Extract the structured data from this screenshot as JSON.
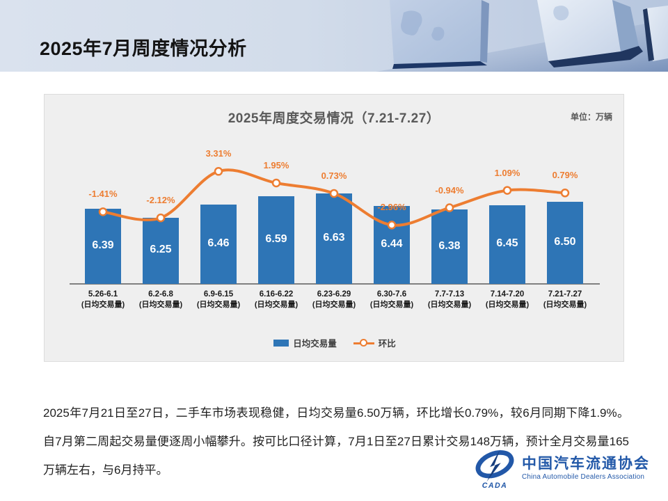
{
  "slide": {
    "title": "2025年7月周度情况分析"
  },
  "chart": {
    "title": "2025年周度交易情况（7.21-7.27）",
    "unit_label": "单位：万辆",
    "legend": {
      "bars": "日均交易量",
      "line": "环比"
    }
  },
  "chart_data": {
    "type": "bar",
    "title": "2025年周度交易情况（7.21-7.27）",
    "unit": "万辆",
    "categories": [
      "5.26-6.1",
      "6.2-6.8",
      "6.9-6.15",
      "6.16-6.22",
      "6.23-6.29",
      "6.30-7.6",
      "7.7-7.13",
      "7.14-7.20",
      "7.21-7.27"
    ],
    "category_sub_label": "(日均交易量)",
    "series": [
      {
        "name": "日均交易量",
        "type": "bar",
        "color": "#2E75B6",
        "values": [
          6.39,
          6.25,
          6.46,
          6.59,
          6.63,
          6.44,
          6.38,
          6.45,
          6.5
        ]
      },
      {
        "name": "环比",
        "type": "line",
        "color": "#ED7D31",
        "values_pct": [
          -1.41,
          -2.12,
          3.31,
          1.95,
          0.73,
          -2.96,
          -0.94,
          1.09,
          0.79
        ],
        "labels": [
          "-1.41%",
          "-2.12%",
          "3.31%",
          "1.95%",
          "0.73%",
          "-2.96%",
          "-0.94%",
          "1.09%",
          "0.79%"
        ]
      }
    ],
    "bar_axis_min": 5.2,
    "bar_axis_max": 6.8,
    "grid": false,
    "legend_position": "bottom"
  },
  "body": {
    "paragraph": "2025年7月21日至27日，二手车市场表现稳健，日均交易量6.50万辆，环比增长0.79%，较6月同期下降1.9%。自7月第二周起交易量便逐周小幅攀升。按可比口径计算，7月1日至27日累计交易148万辆，预计全月交易量165万辆左右，与6月持平。"
  },
  "logo": {
    "cn": "中国汽车流通协会",
    "en": "China Automobile Dealers Association",
    "badge": "CADA"
  },
  "colors": {
    "bar": "#2E75B6",
    "line": "#ED7D31",
    "panel_bg": "#EFEFEF",
    "logo_blue": "#2258A8"
  }
}
